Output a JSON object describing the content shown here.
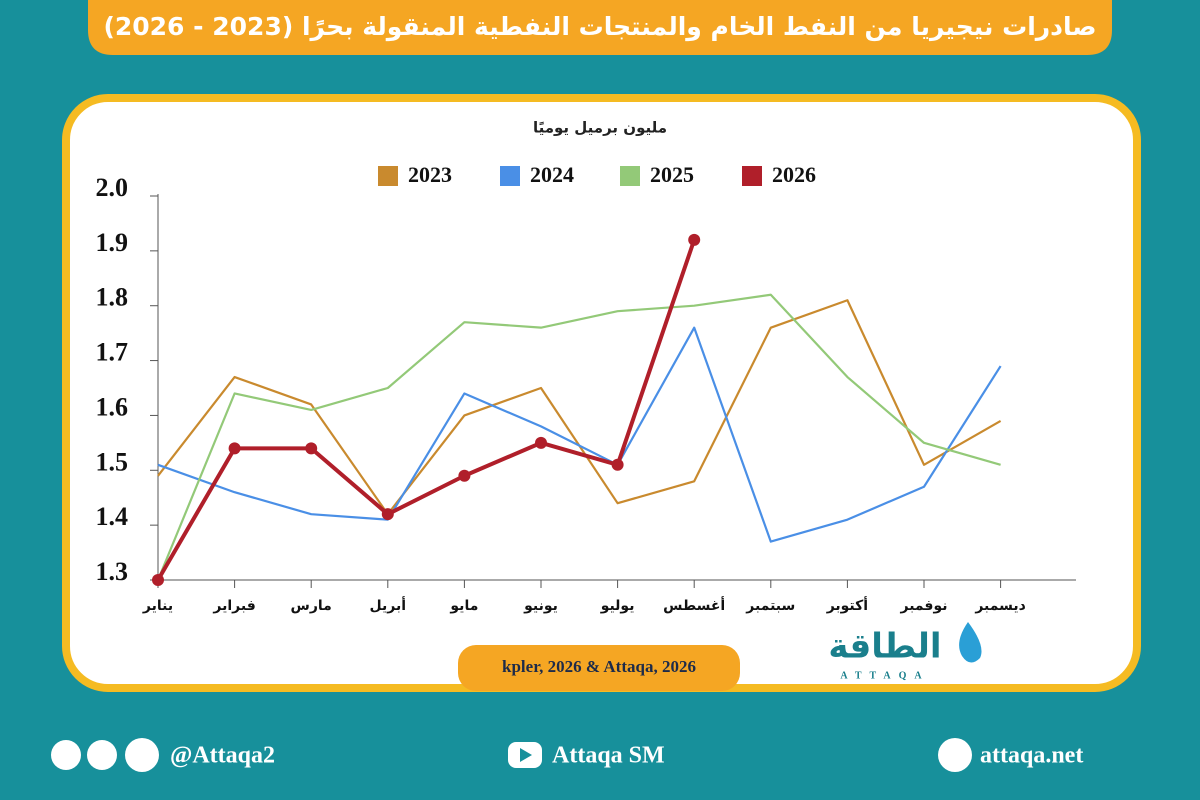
{
  "chart_data": {
    "type": "line",
    "title": "صادرات نيجيريا من النفط الخام والمنتجات النفطية المنقولة بحرًا (2023 - 2026)",
    "y_label": "مليون برميل يوميًا",
    "source": "kpler, 2026 & Attaqa, 2026",
    "categories": [
      "يناير",
      "فبراير",
      "مارس",
      "أبريل",
      "مايو",
      "يونيو",
      "يوليو",
      "أغسطس",
      "سبتمبر",
      "أكتوبر",
      "نوفمبر",
      "ديسمبر"
    ],
    "series": [
      {
        "name": "2023",
        "color": "#c98a2e",
        "values": [
          1.49,
          1.67,
          1.62,
          1.42,
          1.6,
          1.65,
          1.44,
          1.48,
          1.76,
          1.81,
          1.51,
          1.59
        ]
      },
      {
        "name": "2024",
        "color": "#4a8fe6",
        "values": [
          1.51,
          1.46,
          1.42,
          1.41,
          1.64,
          1.58,
          1.51,
          1.76,
          1.37,
          1.41,
          1.47,
          1.69
        ]
      },
      {
        "name": "2025",
        "color": "#93c978",
        "values": [
          1.3,
          1.64,
          1.61,
          1.65,
          1.77,
          1.76,
          1.79,
          1.8,
          1.82,
          1.67,
          1.55,
          1.51
        ]
      },
      {
        "name": "2026",
        "color": "#b01f2a",
        "values": [
          1.3,
          1.54,
          1.54,
          1.42,
          1.49,
          1.55,
          1.51,
          1.92,
          null,
          null,
          null,
          null
        ],
        "markers": true
      }
    ],
    "ylim": [
      1.3,
      2.0
    ],
    "yticks": [
      1.3,
      1.4,
      1.5,
      1.6,
      1.7,
      1.8,
      1.9,
      {
        "value": 2.0,
        "label": "2.0"
      }
    ],
    "grid": false,
    "legend": "top"
  },
  "logo": {
    "name": "الطاقة",
    "latin": "ATTAQA"
  },
  "footer": {
    "social": "@Attaqa2",
    "youtube": "Attaqa SM",
    "website": "attaqa.net"
  }
}
